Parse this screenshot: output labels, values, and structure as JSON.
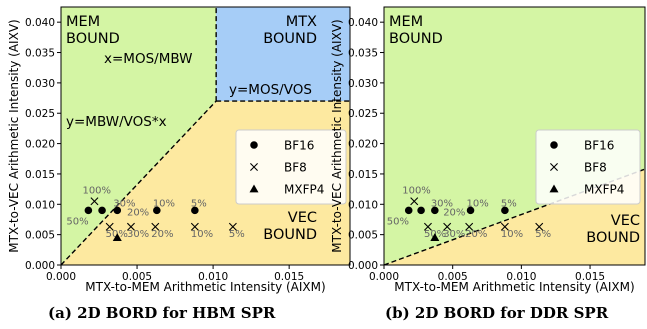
{
  "captions": [
    "(a) 2D BORD for HBM SPR",
    "(b) 2D BORD for DDR SPR"
  ],
  "colors": {
    "mem": "#d4f5a4",
    "mtx": "#a6cdf7",
    "vec": "#fde9a0",
    "marker": "#000000",
    "label": "#666666"
  },
  "legend": [
    {
      "name": "BF16",
      "marker": "circle"
    },
    {
      "name": "BF8",
      "marker": "x"
    },
    {
      "name": "MXFP4",
      "marker": "triangle"
    }
  ],
  "chart_data": [
    {
      "type": "scatter",
      "title": "",
      "xlabel": "MTX-to-MEM Arithmetic Intensity (AIXM)",
      "ylabel": "MTX-to-VEC Arithmetic Intensity (AIXV)",
      "xlim": [
        0,
        0.019
      ],
      "ylim": [
        0,
        0.0425
      ],
      "xticks": [
        "0.000",
        "0.005",
        "0.010",
        "0.015"
      ],
      "yticks": [
        "0.000",
        "0.005",
        "0.010",
        "0.015",
        "0.020",
        "0.025",
        "0.030",
        "0.035",
        "0.040"
      ],
      "legend_position": "center-right",
      "regions": [
        {
          "name": "mem",
          "label": "MEM\nBOUND"
        },
        {
          "name": "mtx",
          "label": "MTX\nBOUND"
        },
        {
          "name": "vec",
          "label": "VEC\nBOUND"
        }
      ],
      "boundaries": [
        {
          "label": "x=MOS/MBW",
          "points": [
            [
              0.0102,
              0.027
            ],
            [
              0.0102,
              0.0425
            ]
          ]
        },
        {
          "label": "y=MOS/VOS",
          "points": [
            [
              0.0102,
              0.027
            ],
            [
              0.019,
              0.027
            ]
          ]
        },
        {
          "label": "y=MBW/VOS*x",
          "points": [
            [
              0,
              0
            ],
            [
              0.0102,
              0.027
            ]
          ]
        }
      ],
      "series": [
        {
          "name": "BF16",
          "marker": "circle",
          "points": [
            [
              0.0018,
              0.009
            ],
            [
              0.0027,
              0.009
            ],
            [
              0.0037,
              0.009
            ],
            [
              0.0063,
              0.009
            ],
            [
              0.0088,
              0.009
            ]
          ]
        },
        {
          "name": "BF8",
          "marker": "x",
          "points": [
            [
              0.0022,
              0.0105
            ],
            [
              0.0032,
              0.0063
            ],
            [
              0.0046,
              0.0063
            ],
            [
              0.0062,
              0.0063
            ],
            [
              0.0088,
              0.0063
            ],
            [
              0.0113,
              0.0063
            ]
          ]
        },
        {
          "name": "MXFP4",
          "marker": "triangle",
          "points": [
            [
              0.0037,
              0.0045
            ]
          ]
        }
      ],
      "annotations": [
        {
          "text": "100%",
          "x": 0.0022,
          "y": 0.0105
        },
        {
          "text": "50%",
          "x": 0.0018,
          "y": 0.009
        },
        {
          "text": "30%",
          "x": 0.0037,
          "y": 0.009
        },
        {
          "text": "20%",
          "x": 0.0046,
          "y": 0.009
        },
        {
          "text": "10%",
          "x": 0.0063,
          "y": 0.009
        },
        {
          "text": "5%",
          "x": 0.0088,
          "y": 0.009
        },
        {
          "text": "50%",
          "x": 0.0032,
          "y": 0.0063
        },
        {
          "text": "30%",
          "x": 0.0046,
          "y": 0.0063
        },
        {
          "text": "20%",
          "x": 0.0062,
          "y": 0.0063
        },
        {
          "text": "10%",
          "x": 0.0088,
          "y": 0.0063
        },
        {
          "text": "5%",
          "x": 0.0113,
          "y": 0.0063
        }
      ]
    },
    {
      "type": "scatter",
      "title": "",
      "xlabel": "MTX-to-MEM Arithmetic Intensity (AIXM)",
      "ylabel": "MTX-to-VEC Arithmetic Intensity (AIXV)",
      "xlim": [
        0,
        0.019
      ],
      "ylim": [
        0,
        0.0425
      ],
      "xticks": [
        "0.000",
        "0.005",
        "0.010",
        "0.015"
      ],
      "yticks": [
        "0.000",
        "0.005",
        "0.010",
        "0.015",
        "0.020",
        "0.025",
        "0.030",
        "0.035",
        "0.040"
      ],
      "legend_position": "center-right",
      "regions": [
        {
          "name": "mem",
          "label": "MEM\nBOUND"
        },
        {
          "name": "vec",
          "label": "VEC\nBOUND"
        }
      ],
      "boundaries": [
        {
          "label": "",
          "points": [
            [
              0,
              0
            ],
            [
              0.019,
              0.0158
            ]
          ]
        }
      ],
      "series": [
        {
          "name": "BF16",
          "marker": "circle",
          "points": [
            [
              0.0018,
              0.009
            ],
            [
              0.0027,
              0.009
            ],
            [
              0.0037,
              0.009
            ],
            [
              0.0063,
              0.009
            ],
            [
              0.0088,
              0.009
            ]
          ]
        },
        {
          "name": "BF8",
          "marker": "x",
          "points": [
            [
              0.0022,
              0.0105
            ],
            [
              0.0032,
              0.0063
            ],
            [
              0.0046,
              0.0063
            ],
            [
              0.0062,
              0.0063
            ],
            [
              0.0088,
              0.0063
            ],
            [
              0.0113,
              0.0063
            ]
          ]
        },
        {
          "name": "MXFP4",
          "marker": "triangle",
          "points": [
            [
              0.0037,
              0.0045
            ]
          ]
        }
      ],
      "annotations": [
        {
          "text": "100%",
          "x": 0.0022,
          "y": 0.0105
        },
        {
          "text": "50%",
          "x": 0.0018,
          "y": 0.009
        },
        {
          "text": "30%",
          "x": 0.0037,
          "y": 0.009
        },
        {
          "text": "20%",
          "x": 0.0046,
          "y": 0.009
        },
        {
          "text": "10%",
          "x": 0.0063,
          "y": 0.009
        },
        {
          "text": "5%",
          "x": 0.0088,
          "y": 0.009
        },
        {
          "text": "50%",
          "x": 0.0032,
          "y": 0.0063
        },
        {
          "text": "30%",
          "x": 0.0046,
          "y": 0.0063
        },
        {
          "text": "20%",
          "x": 0.0062,
          "y": 0.0063
        },
        {
          "text": "10%",
          "x": 0.0088,
          "y": 0.0063
        },
        {
          "text": "5%",
          "x": 0.0113,
          "y": 0.0063
        }
      ]
    }
  ]
}
